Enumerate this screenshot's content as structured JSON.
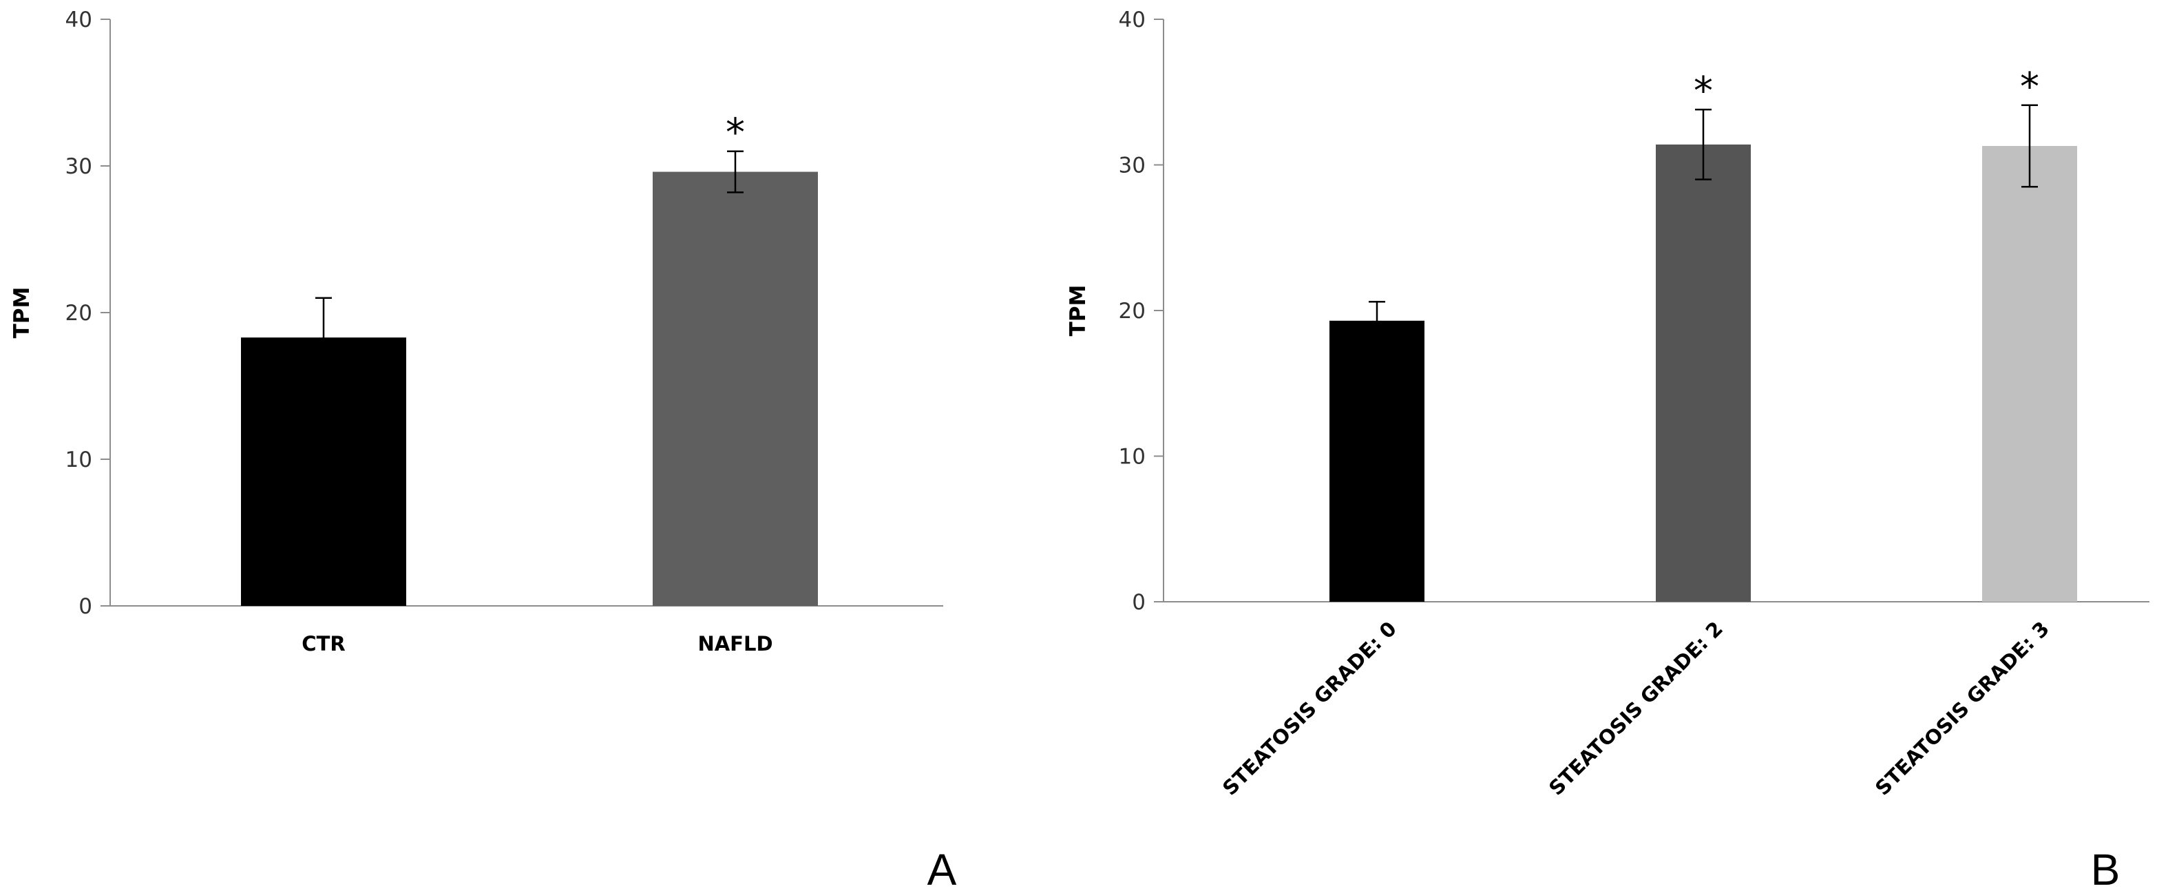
{
  "chart_data": [
    {
      "type": "bar",
      "panel_label": "A",
      "title": "",
      "xlabel": "",
      "ylabel": "TPM",
      "ylim": [
        0,
        40
      ],
      "yticks": [
        0,
        10,
        20,
        30,
        40
      ],
      "grid": false,
      "categories": [
        "CTR",
        "NAFLD"
      ],
      "values": [
        18.3,
        29.6
      ],
      "errors": [
        2.7,
        1.4
      ],
      "significance": [
        "",
        "*"
      ],
      "colors": [
        "#000000",
        "#5f5f5f"
      ],
      "rotate_labels": false
    },
    {
      "type": "bar",
      "panel_label": "B",
      "title": "",
      "xlabel": "",
      "ylabel": "TPM",
      "ylim": [
        0,
        40
      ],
      "yticks": [
        0,
        10,
        20,
        30,
        40
      ],
      "grid": false,
      "categories": [
        "STEATOSIS GRADE: 0",
        "STEATOSIS GRADE: 2",
        "STEATOSIS GRADE: 3"
      ],
      "values": [
        19.3,
        31.4,
        31.3
      ],
      "errors": [
        1.3,
        2.4,
        2.8
      ],
      "significance": [
        "",
        "*",
        "*"
      ],
      "colors": [
        "#000000",
        "#555555",
        "#c0c0c0"
      ],
      "rotate_labels": true
    }
  ]
}
